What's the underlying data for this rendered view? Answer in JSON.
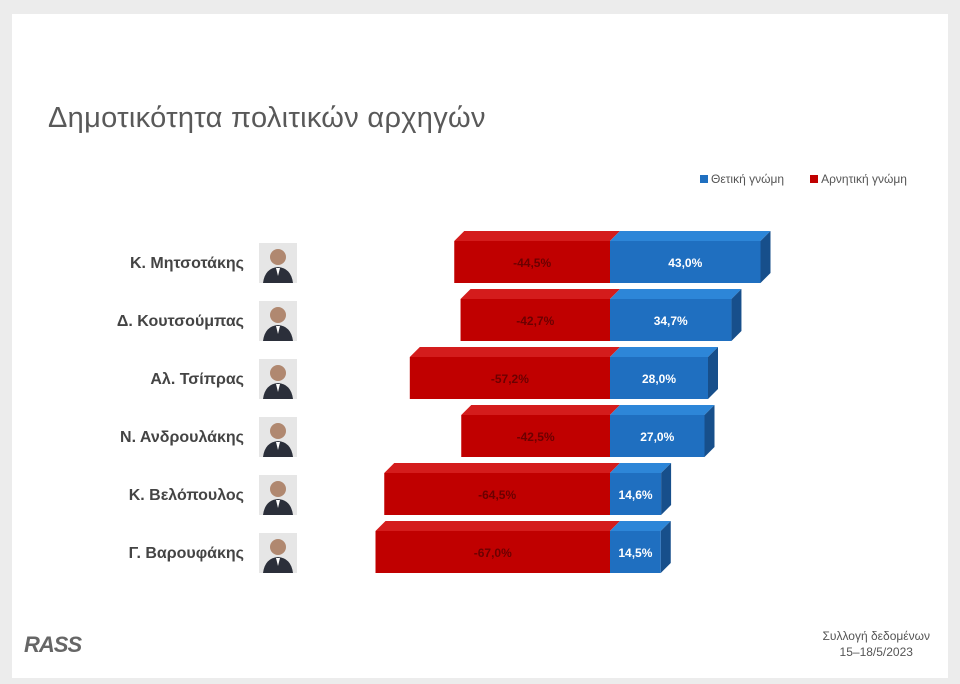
{
  "title": "Δημοτικότητα πολιτικών αρχηγών",
  "legend": {
    "positive": "Θετική γνώμη",
    "negative": "Αρνητική γνώμη"
  },
  "colors": {
    "positive": "#1f6fc0",
    "negative": "#c00000",
    "positive_dark": "#174f8b",
    "positive_top": "#2d86d8",
    "negative_dark": "#8e0000",
    "negative_top": "#d41c1c"
  },
  "chart_data": {
    "type": "bar",
    "orientation": "horizontal-diverging",
    "title": "Δημοτικότητα πολιτικών αρχηγών",
    "categories": [
      "Κ. Μητσοτάκης",
      "Δ. Κουτσούμπας",
      "Αλ. Τσίπρας",
      "Ν. Ανδρουλάκης",
      "Κ. Βελόπουλος",
      "Γ. Βαρουφάκης"
    ],
    "series": [
      {
        "name": "Θετική γνώμη",
        "values": [
          43.0,
          34.7,
          28.0,
          27.0,
          14.6,
          14.5
        ],
        "labels": [
          "43,0%",
          "34,7%",
          "28,0%",
          "27,0%",
          "14,6%",
          "14,5%"
        ]
      },
      {
        "name": "Αρνητική γνώμη",
        "values": [
          -44.5,
          -42.7,
          -57.2,
          -42.5,
          -64.5,
          -67.0
        ],
        "labels": [
          "-44,5%",
          "-42,7%",
          "-57,2%",
          "-42,5%",
          "-64,5%",
          "-67,0%"
        ]
      }
    ],
    "legend_position": "top-right",
    "grid": false
  },
  "footer": {
    "logo": "RASS",
    "note_line1": "Συλλογή δεδομένων",
    "note_line2": "15–18/5/2023"
  }
}
